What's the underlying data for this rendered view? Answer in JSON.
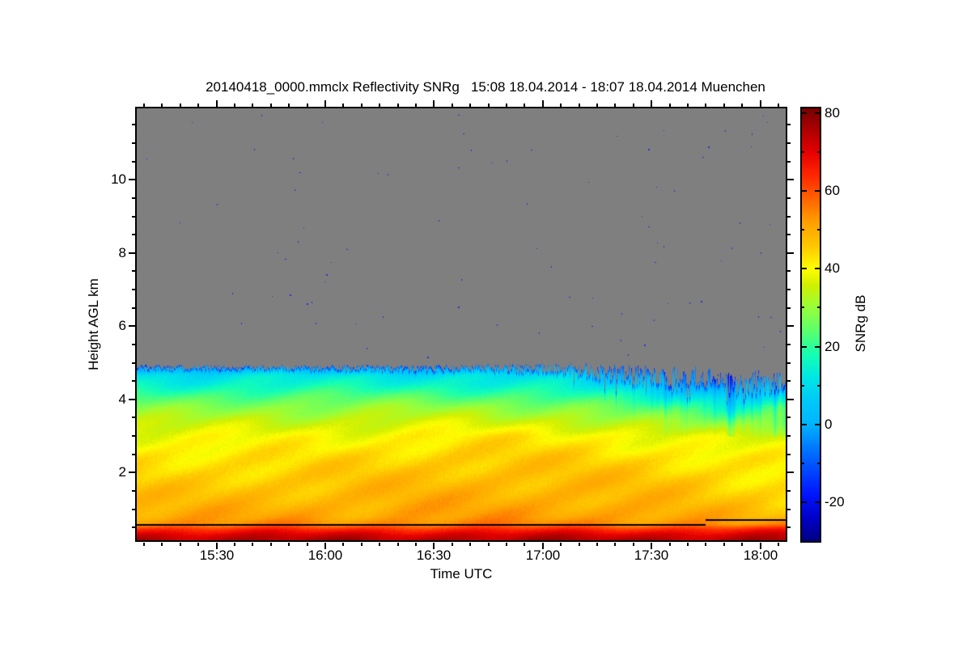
{
  "chart_data": {
    "type": "heatmap",
    "title": "20140418_0000.mmclx Reflectivity SNRg   15:08 18.04.2014 - 18:07 18.04.2014 Muenchen",
    "xlabel": "Time UTC",
    "ylabel": "Height AGL km",
    "colorbar_label": "SNRg dB",
    "station": "Muenchen",
    "time_start": "15:08",
    "time_end": "18:07",
    "date": "18.04.2014",
    "duration_min": 179,
    "x_major_ticks": [
      {
        "label": "15:30",
        "t": 22
      },
      {
        "label": "16:00",
        "t": 52
      },
      {
        "label": "16:30",
        "t": 82
      },
      {
        "label": "17:00",
        "t": 112
      },
      {
        "label": "17:30",
        "t": 142
      },
      {
        "label": "18:00",
        "t": 172
      }
    ],
    "x_minor_step_min": 5,
    "height_range_km": [
      0.15,
      11.95
    ],
    "y_major_ticks": [
      2,
      4,
      6,
      8,
      10
    ],
    "y_minor_step_km": 0.5,
    "grid_on": false,
    "legend": "colorbar-right",
    "colorbar": {
      "range_db": [
        -30,
        81.25
      ],
      "major_ticks": [
        80,
        60,
        40,
        20,
        0,
        -20
      ],
      "minor_ticks": [
        70,
        50,
        30,
        10,
        -10
      ]
    },
    "no_echo_color": "#7f7f7f",
    "speck_color": "#2233cc",
    "speck_count": 85,
    "colormap": [
      [
        -30,
        "#000082"
      ],
      [
        -24,
        "#0000c8"
      ],
      [
        -18,
        "#0014ff"
      ],
      [
        -12,
        "#0046ff"
      ],
      [
        -6,
        "#0078ff"
      ],
      [
        0,
        "#00b4ff"
      ],
      [
        6,
        "#00c8fa"
      ],
      [
        12,
        "#00e6e6"
      ],
      [
        18,
        "#14ffb4"
      ],
      [
        24,
        "#5aff6e"
      ],
      [
        30,
        "#96ff3c"
      ],
      [
        36,
        "#d2f000"
      ],
      [
        40,
        "#ffff00"
      ],
      [
        46,
        "#ffc800"
      ],
      [
        52,
        "#ffa000"
      ],
      [
        58,
        "#ff6400"
      ],
      [
        64,
        "#ff2800"
      ],
      [
        70,
        "#e60000"
      ],
      [
        76,
        "#aa0000"
      ],
      [
        81.25,
        "#780000"
      ]
    ],
    "cloud_top_km": [
      [
        0,
        4.88,
        0.12
      ],
      [
        15,
        4.88,
        0.12
      ],
      [
        30,
        4.88,
        0.12
      ],
      [
        45,
        4.87,
        0.12
      ],
      [
        60,
        4.87,
        0.15
      ],
      [
        75,
        4.86,
        0.15
      ],
      [
        90,
        4.86,
        0.18
      ],
      [
        100,
        4.86,
        0.25
      ],
      [
        110,
        4.85,
        0.3
      ],
      [
        118,
        4.84,
        0.4
      ],
      [
        125,
        4.8,
        0.55
      ],
      [
        131,
        4.75,
        0.65
      ],
      [
        136,
        4.68,
        0.75
      ],
      [
        141,
        4.74,
        0.8
      ],
      [
        146,
        4.62,
        0.85
      ],
      [
        151,
        4.56,
        0.9
      ],
      [
        156,
        4.62,
        0.95
      ],
      [
        161,
        4.52,
        0.9
      ],
      [
        166,
        4.46,
        0.8
      ],
      [
        171,
        4.52,
        0.85
      ],
      [
        175,
        4.45,
        0.8
      ],
      [
        179,
        4.55,
        0.75
      ]
    ],
    "grid": {
      "times_min": [
        0,
        15,
        30,
        45,
        60,
        75,
        90,
        105,
        120,
        135,
        150,
        165,
        179
      ],
      "heights_km": [
        0.15,
        0.3,
        0.45,
        0.6,
        0.8,
        1.2,
        1.8,
        2.4,
        3.0,
        3.4,
        3.8,
        4.1,
        4.4,
        4.65,
        4.85
      ],
      "snr_db": [
        [
          76,
          72,
          65,
          54,
          51,
          48,
          45,
          43,
          39,
          34,
          28,
          22,
          15,
          11,
          2
        ],
        [
          76,
          72,
          65,
          54,
          51,
          48,
          45,
          43,
          39,
          34,
          28,
          22,
          15,
          11,
          2
        ],
        [
          76,
          72,
          65,
          54,
          51,
          48,
          46,
          43,
          39,
          35,
          29,
          23,
          16,
          12,
          2
        ],
        [
          76,
          72,
          65,
          54,
          51,
          49,
          46,
          43,
          40,
          35,
          29,
          23,
          16,
          12,
          2
        ],
        [
          76,
          72,
          65,
          54,
          51,
          49,
          47,
          44,
          40,
          35,
          29,
          23,
          16,
          12,
          2
        ],
        [
          76,
          72,
          65,
          55,
          52,
          50,
          47,
          45,
          41,
          36,
          30,
          23,
          16,
          12,
          2
        ],
        [
          76,
          72,
          65,
          55,
          52,
          50,
          48,
          46,
          42,
          36,
          30,
          23,
          16,
          12,
          2
        ],
        [
          76,
          72,
          65,
          55,
          52,
          50,
          48,
          46,
          42,
          36,
          29,
          22,
          15,
          11,
          2
        ],
        [
          76,
          72,
          65,
          55,
          52,
          50,
          48,
          45,
          41,
          35,
          28,
          20,
          13,
          8,
          0
        ],
        [
          76,
          72,
          65,
          54,
          52,
          49,
          47,
          44,
          40,
          33,
          24,
          16,
          8,
          2,
          -4
        ],
        [
          76,
          72,
          65,
          54,
          51,
          48,
          46,
          43,
          38,
          30,
          20,
          12,
          4,
          -2,
          -6
        ],
        [
          76,
          72,
          65,
          53,
          49,
          46,
          44,
          42,
          36,
          27,
          17,
          8,
          -1,
          -5,
          -8
        ],
        [
          76,
          72,
          65,
          53,
          48,
          45,
          43,
          41,
          36,
          30,
          26,
          16,
          6,
          -2,
          -8
        ]
      ]
    },
    "surface_line": [
      {
        "t0": 0,
        "t1": 157,
        "h_km": 0.585
      },
      {
        "t0": 157,
        "t1": 179,
        "h_km": 0.72
      }
    ]
  }
}
